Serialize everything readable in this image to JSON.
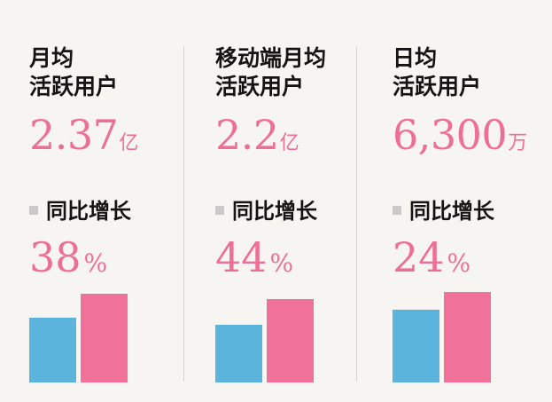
{
  "chart_data": [
    {
      "type": "bar",
      "title": "月均\n活跃用户",
      "value": "2.37",
      "unit": "亿",
      "growth_label": "同比增长",
      "growth_value": "38",
      "growth_unit": "%",
      "categories": [
        "",
        ""
      ],
      "values": [
        62,
        85
      ],
      "colors": [
        "#5ab4dc",
        "#f0719a"
      ]
    },
    {
      "type": "bar",
      "title": "移动端月均\n活跃用户",
      "value": "2.2",
      "unit": "亿",
      "growth_label": "同比增长",
      "growth_value": "44",
      "growth_unit": "%",
      "categories": [
        "",
        ""
      ],
      "values": [
        55,
        80
      ],
      "colors": [
        "#5ab4dc",
        "#f0719a"
      ]
    },
    {
      "type": "bar",
      "title": "日均\n活跃用户",
      "value": "6,300",
      "unit": "万",
      "growth_label": "同比增长",
      "growth_value": "24",
      "growth_unit": "%",
      "categories": [
        "",
        ""
      ],
      "values": [
        70,
        87
      ],
      "colors": [
        "#5ab4dc",
        "#f0719a"
      ]
    }
  ]
}
